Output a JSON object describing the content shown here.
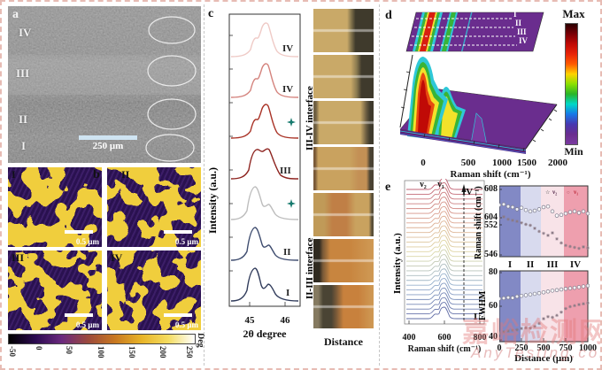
{
  "panels": {
    "a": "a",
    "b": "b",
    "c": "c",
    "d": "d",
    "e": "e"
  },
  "panel_a": {
    "regions": [
      "IV",
      "III",
      "II",
      "I"
    ],
    "scale_bar": "250 μm"
  },
  "panel_b": {
    "quadrants": [
      "I",
      "II",
      "III",
      "IV"
    ],
    "scale_bar": "0.5 μm",
    "colorbar_ticks": [
      "-50",
      "0",
      "50",
      "100",
      "150",
      "200",
      "250"
    ],
    "colorbar_unit": "Deg",
    "colorbar_colors": [
      "#000000",
      "#2b0a50",
      "#6b2a7e",
      "#9c4a3c",
      "#c87820",
      "#e8b428",
      "#f4dc60",
      "#ffffff"
    ],
    "phase_colors": {
      "matrix": "#351a5e",
      "domains": "#f0ce3e"
    }
  },
  "panel_c": {
    "ylabel": "Intensity (a.u.)",
    "xlabel": "2θ degree",
    "xticks": [
      "45",
      "46"
    ],
    "labels": [
      "IV",
      "IV",
      "III",
      "II",
      "I"
    ],
    "interfaces": [
      "III-IV interface",
      "II-III interface"
    ],
    "distance": "Distance",
    "star_color": "#177a6e"
  },
  "panel_d": {
    "max": "Max",
    "min": "Min",
    "xlabel": "Raman shift (cm⁻¹)",
    "xticks": [
      "0",
      "500",
      "1000",
      "1500",
      "2000"
    ],
    "slices": [
      "I",
      "II",
      "III",
      "IV"
    ],
    "colorbar_colors": [
      "#2a0002",
      "#7a0006",
      "#c00a06",
      "#e82408",
      "#ff5a00",
      "#ffd200",
      "#8ae000",
      "#28b428",
      "#00d8c8",
      "#1878e8",
      "#4838b0",
      "#6a2d8e",
      "#7a3aa0"
    ]
  },
  "panel_e": {
    "waterfall": {
      "ylabel": "Intensity (a.u.)",
      "xlabel": "Raman shift (cm⁻¹)",
      "xticks": [
        "400",
        "600",
        "800"
      ],
      "nu2": "ν₂",
      "nu1": "ν₁",
      "top": "IV",
      "bottom": "I"
    },
    "bands": {
      "labels": [
        "I",
        "II",
        "III",
        "IV"
      ],
      "colors": [
        "#8289c5",
        "#d8daee",
        "#f8e3e8",
        "#ee9fae"
      ],
      "boundaries": [
        0,
        240,
        470,
        730,
        1000
      ]
    },
    "scatter_top": {
      "ylabel": "Raman shift (cm⁻¹)",
      "yticks": [
        "608",
        "604",
        "552",
        "546"
      ],
      "legend": [
        {
          "glyph": "☆",
          "label": "ν₂"
        },
        {
          "glyph": "○",
          "label": "ν₁"
        }
      ]
    },
    "scatter_bottom": {
      "ylabel": "FWHM",
      "yticks": [
        "80",
        "60",
        "40"
      ],
      "xticks": [
        "0",
        "250",
        "500",
        "750",
        "1000"
      ],
      "xlabel": "Distance (μm)"
    }
  },
  "watermark": {
    "cn": "嘉峪检测网",
    "site": "AnyTesting.com"
  },
  "chart_data": [
    {
      "id": "panel_c_xrd",
      "type": "line",
      "xlabel": "2θ degree",
      "ylabel": "Intensity (a.u.)",
      "x_range": [
        44.6,
        46.4
      ],
      "xticks": [
        45,
        46
      ],
      "curves": [
        {
          "label": "IV",
          "color": "#efcac6",
          "peaks": [
            45.45,
            45.62
          ]
        },
        {
          "label": "IV",
          "color": "#d4837d",
          "peaks": [
            45.45,
            45.62
          ]
        },
        {
          "label": "III-IV interface",
          "color": "#a93226",
          "marker": "teal-star",
          "peaks": [
            45.45,
            45.6
          ]
        },
        {
          "label": "III",
          "color": "#8e2420",
          "peaks": [
            45.5,
            45.65
          ]
        },
        {
          "label": "II-III interface",
          "color": "#bdbdbd",
          "marker": "teal-star",
          "peaks": [
            45.5,
            45.65
          ]
        },
        {
          "label": "II",
          "color": "#3d4b6e",
          "peaks": [
            45.5,
            45.72
          ]
        },
        {
          "label": "I",
          "color": "#2f3a5a",
          "peaks": [
            45.5,
            45.78
          ]
        }
      ]
    },
    {
      "id": "panel_d_raman_map",
      "type": "heatmap",
      "xlabel": "Raman shift (cm⁻¹)",
      "x_range": [
        0,
        2000
      ],
      "xticks": [
        0,
        500,
        1000,
        1500,
        2000
      ],
      "colorbar": {
        "top": "Max",
        "bottom": "Min"
      },
      "line_slices": [
        "I",
        "II",
        "III",
        "IV"
      ],
      "main_peaks_cm1": [
        150,
        600,
        850
      ]
    },
    {
      "id": "panel_e_waterfall",
      "type": "line",
      "xlabel": "Raman shift (cm⁻¹)",
      "ylabel": "Intensity (a.u.)",
      "x_range": [
        380,
        820
      ],
      "xticks": [
        400,
        600,
        800
      ],
      "n_curves": 28,
      "peaks": {
        "nu1": 600,
        "nu2": 550
      },
      "direction_labels": {
        "top": "IV",
        "bottom": "I"
      }
    },
    {
      "id": "panel_e_peak_position",
      "type": "scatter",
      "ylabel": "Raman shift (cm⁻¹)",
      "yticks": [
        608,
        604,
        552,
        546
      ],
      "regions": [
        "I",
        "II",
        "III",
        "IV"
      ],
      "x": [
        0,
        50,
        100,
        150,
        200,
        250,
        300,
        350,
        400,
        450,
        500,
        550,
        600,
        650,
        700,
        750,
        800,
        850,
        900,
        950,
        1000
      ],
      "series": [
        {
          "name": "ν₁",
          "marker": "circle",
          "values": [
            605.8,
            605.9,
            605.6,
            605.5,
            605.2,
            605.4,
            605.1,
            604.9,
            605.0,
            605.2,
            605.5,
            605.6,
            604.9,
            604.3,
            604.4,
            604.6,
            604.8,
            604.9,
            604.7,
            604.9,
            604.6
          ]
        },
        {
          "name": "ν₂",
          "marker": "star",
          "values": [
            553.3,
            553.6,
            553.1,
            552.9,
            552.7,
            552.4,
            552.1,
            551.9,
            551.3,
            550.7,
            550.3,
            549.9,
            550.4,
            549.2,
            548.4,
            547.9,
            547.7,
            547.5,
            547.3,
            547.6,
            547.4
          ]
        }
      ]
    },
    {
      "id": "panel_e_fwhm",
      "type": "scatter",
      "ylabel": "FWHM",
      "xlabel": "Distance (μm)",
      "yticks": [
        80,
        60,
        40
      ],
      "xticks": [
        0,
        250,
        500,
        750,
        1000
      ],
      "x": [
        0,
        50,
        100,
        150,
        200,
        250,
        300,
        350,
        400,
        450,
        500,
        550,
        600,
        650,
        700,
        750,
        800,
        850,
        900,
        950,
        1000
      ],
      "series": [
        {
          "name": "ν₁ FWHM",
          "marker": "circle",
          "values": [
            64.5,
            64.8,
            65.2,
            65.0,
            65.8,
            66.2,
            66.6,
            67.0,
            67.4,
            67.8,
            68.3,
            68.8,
            69.3,
            69.6,
            70.0,
            70.4,
            70.7,
            71.0,
            71.4,
            71.8,
            72.2
          ]
        },
        {
          "name": "ν₂ FWHM",
          "marker": "star",
          "values": [
            44.0,
            44.8,
            45.3,
            45.8,
            46.0,
            46.8,
            47.2,
            47.0,
            48.0,
            49.8,
            52.6,
            53.8,
            53.4,
            54.6,
            56.5,
            58.6,
            59.8,
            60.4,
            61.0,
            61.5,
            62.0
          ]
        }
      ]
    }
  ]
}
